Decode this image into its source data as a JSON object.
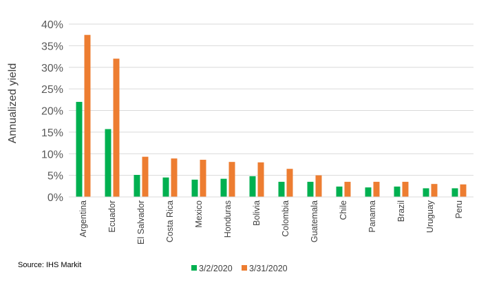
{
  "chart_data": {
    "type": "bar",
    "ylabel": "Annualized yield",
    "xlabel": "",
    "ylim": [
      0,
      40
    ],
    "yticks": [
      0,
      5,
      10,
      15,
      20,
      25,
      30,
      35,
      40
    ],
    "ytick_suffix": "%",
    "grid": true,
    "legend_position": "bottom",
    "categories": [
      "Argentina",
      "Ecuador",
      "El Salvador",
      "Costa Rica",
      "Mexico",
      "Honduras",
      "Bolivia",
      "Colombia",
      "Guatemala",
      "Chile",
      "Panama",
      "Brazil",
      "Uruguay",
      "Peru"
    ],
    "series": [
      {
        "name": "3/2/2020",
        "color": "#00b050",
        "values": [
          22.0,
          15.7,
          5.1,
          4.5,
          4.0,
          4.2,
          4.8,
          3.5,
          3.5,
          2.4,
          2.2,
          2.4,
          2.0,
          2.0
        ]
      },
      {
        "name": "3/31/2020",
        "color": "#ed7d31",
        "values": [
          37.5,
          32.0,
          9.3,
          8.9,
          8.6,
          8.1,
          8.0,
          6.5,
          5.0,
          3.5,
          3.5,
          3.5,
          3.0,
          2.9
        ]
      }
    ]
  },
  "source": "Source: IHS  Markit",
  "gridline_color": "#d9d9d9"
}
